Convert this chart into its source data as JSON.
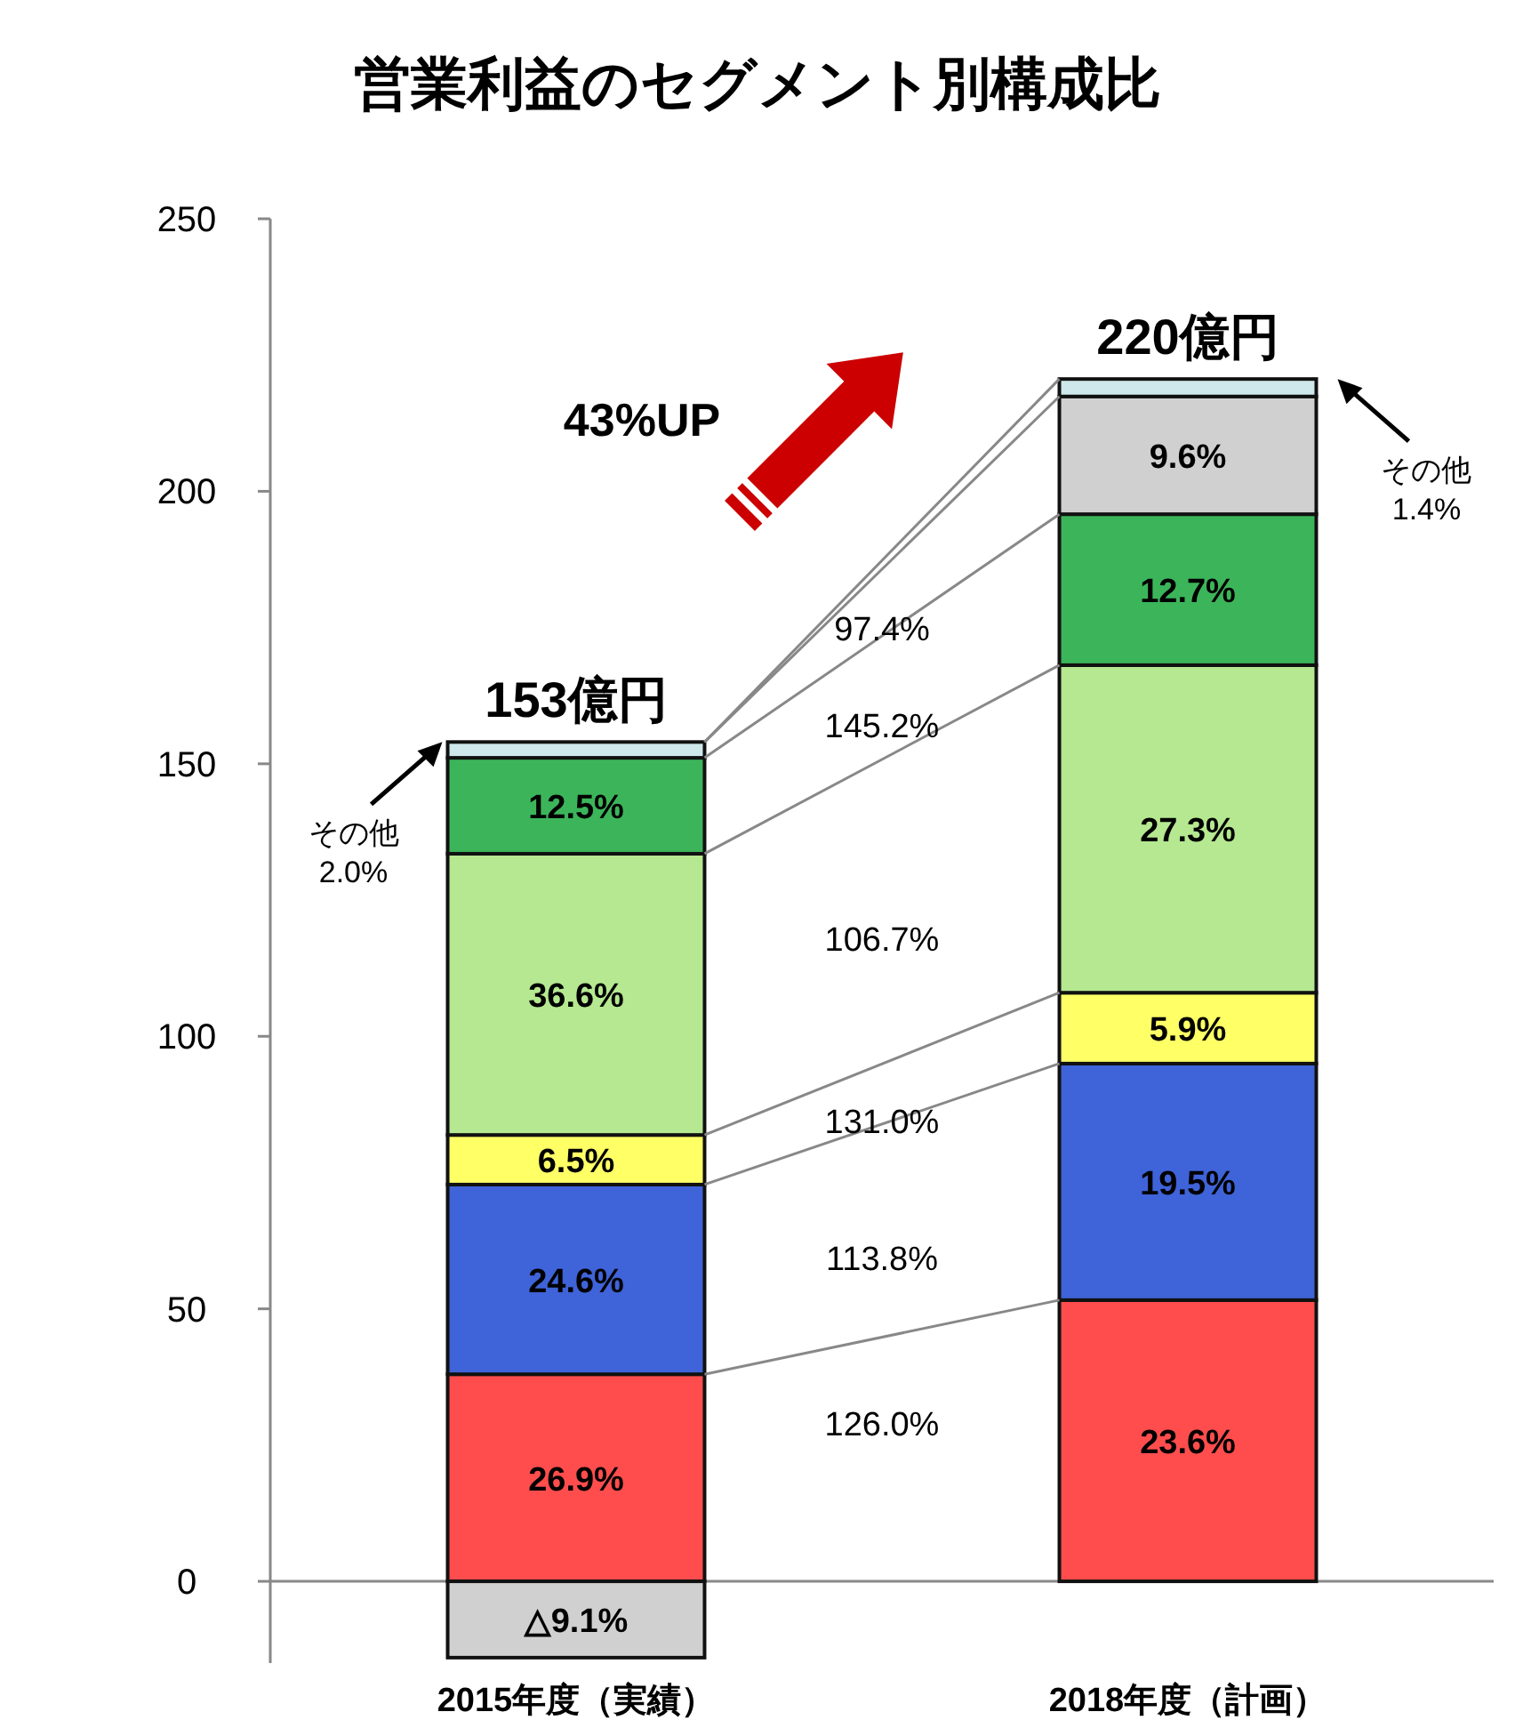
{
  "chart_data": {
    "type": "bar",
    "title": "営業利益のセグメント別構成比",
    "stacked": true,
    "categories": [
      "2015年度（実績）",
      "2018年度（計画）"
    ],
    "ylim": [
      -15,
      250
    ],
    "yticks": [
      0,
      50,
      100,
      150,
      200,
      250
    ],
    "series": [
      {
        "color": "#ff4d4d",
        "values": [
          38.0,
          51.6
        ]
      },
      {
        "color": "#3f63d8",
        "values": [
          34.8,
          43.4
        ]
      },
      {
        "color": "#ffff66",
        "values": [
          9.1,
          13.0
        ]
      },
      {
        "color": "#b5e890",
        "values": [
          51.6,
          60.1
        ]
      },
      {
        "color": "#3cb55a",
        "values": [
          17.6,
          27.7
        ]
      },
      {
        "color": "#d0d0d0",
        "values": [
          -14.0,
          21.6
        ]
      },
      {
        "color": "#cfe8ec",
        "values": [
          2.9,
          3.2
        ]
      }
    ],
    "annotations": [
      "126.0%",
      "113.8%",
      "131.0%",
      "106.7%",
      "145.2%",
      "97.4%",
      "43%UP",
      "その他\n2.0%",
      "その他\n1.4%",
      {
        "text": "153億円",
        "x": "2015年度（実績）",
        "y": 154.0
      },
      {
        "text": "220億円",
        "x": "2018年度（計画）",
        "y": 220.6
      },
      "26.9%",
      "24.6%",
      "6.5%",
      "36.6%",
      "12.5%",
      "△9.1%",
      "23.6%",
      "19.5%",
      "5.9%",
      "27.3%",
      "12.7%",
      "9.6%"
    ]
  }
}
